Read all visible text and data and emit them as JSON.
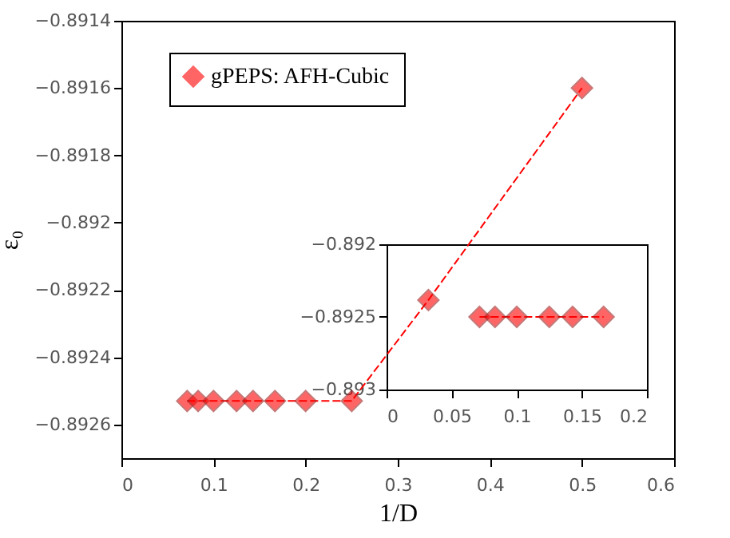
{
  "chart_data": [
    {
      "type": "line",
      "xlabel": "1/D",
      "ylabel": "ε₀",
      "x": [
        0.0714,
        0.0833,
        0.1,
        0.125,
        0.1429,
        0.1667,
        0.2,
        0.25,
        0.3333,
        0.5
      ],
      "series": [
        {
          "name": "gPEPS: AFH-Cubic",
          "color": "#ff0000",
          "values": [
            -0.89253,
            -0.89253,
            -0.89253,
            -0.89253,
            -0.89253,
            -0.89253,
            -0.89253,
            -0.89253,
            -0.89223,
            -0.8916
          ]
        }
      ],
      "xlim": [
        0,
        0.6
      ],
      "xticks": [
        0,
        0.1,
        0.2,
        0.3,
        0.4,
        0.5,
        0.6
      ],
      "ylim": [
        -0.8927,
        -0.8914
      ],
      "yticks": [
        {
          "value": -0.8926,
          "label": "−0.8926"
        },
        {
          "value": -0.8924,
          "label": "−0.8924"
        },
        {
          "value": -0.8922,
          "label": "−0.8922"
        },
        {
          "value": -0.892,
          "label": "−0.892"
        },
        {
          "value": -0.8918,
          "label": "−0.8918"
        },
        {
          "value": -0.8916,
          "label": "−0.8916"
        },
        {
          "value": -0.8914,
          "label": "−0.8914"
        }
      ],
      "marker": "diamond",
      "line_style": "dashed",
      "legend": "top left",
      "grid": false
    },
    {
      "type": "line",
      "x": [
        0.0714,
        0.0833,
        0.1,
        0.125,
        0.1429,
        0.1667
      ],
      "series": [
        {
          "color": "#ff0000",
          "values": [
            -0.8925,
            -0.8925,
            -0.8925,
            -0.8925,
            -0.8925,
            -0.8925
          ]
        }
      ],
      "xlim": [
        0,
        0.2
      ],
      "xticks": [
        0,
        0.05,
        0.1,
        0.15,
        0.2
      ],
      "ylim": [
        -0.893,
        -0.892
      ],
      "yticks": [
        {
          "value": -0.893,
          "label": "−0.893"
        },
        {
          "value": -0.8925,
          "label": "−0.8925"
        },
        {
          "value": -0.892,
          "label": "−0.892"
        }
      ],
      "marker": "diamond",
      "line_style": "dashed",
      "grid": false
    }
  ]
}
